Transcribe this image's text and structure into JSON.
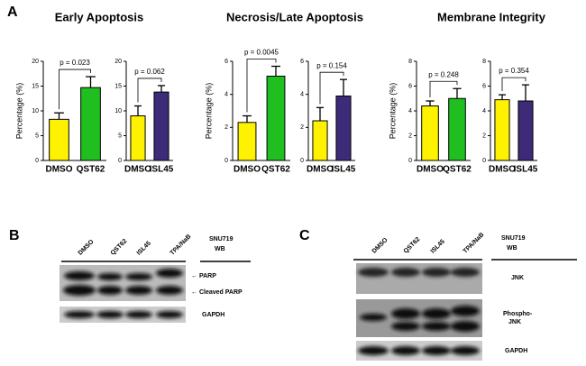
{
  "panels": {
    "a": "A",
    "b": "B",
    "c": "C"
  },
  "chart_data": [
    {
      "type": "bar",
      "title": "Early Apoptosis",
      "ylabel": "Percentage (%)",
      "categories": [
        "DMSO",
        "QST62"
      ],
      "values": [
        8.3,
        14.7
      ],
      "errors": [
        1.3,
        2.2
      ],
      "colors": [
        "#fff200",
        "#1fbf1f"
      ],
      "ylim": [
        0,
        20
      ],
      "yticks": [
        0,
        5,
        10,
        15,
        20
      ],
      "annotation": "p = 0.023"
    },
    {
      "type": "bar",
      "categories": [
        "DMSO",
        "ISL45"
      ],
      "values": [
        9.0,
        13.8
      ],
      "errors": [
        2.0,
        1.3
      ],
      "colors": [
        "#fff200",
        "#3d2b7a"
      ],
      "ylim": [
        0,
        20
      ],
      "yticks": [
        0,
        5,
        10,
        15,
        20
      ],
      "annotation": "p = 0.062"
    },
    {
      "type": "bar",
      "title": "Necrosis/Late Apoptosis",
      "ylabel": "Percentage (%)",
      "categories": [
        "DMSO",
        "QST62"
      ],
      "values": [
        2.3,
        5.1
      ],
      "errors": [
        0.4,
        0.6
      ],
      "colors": [
        "#fff200",
        "#1fbf1f"
      ],
      "ylim": [
        0,
        6
      ],
      "yticks": [
        0,
        2,
        4,
        6
      ],
      "annotation": "p = 0.0045"
    },
    {
      "type": "bar",
      "categories": [
        "DMSO",
        "ISL45"
      ],
      "values": [
        2.4,
        3.9
      ],
      "errors": [
        0.8,
        1.0
      ],
      "colors": [
        "#fff200",
        "#3d2b7a"
      ],
      "ylim": [
        0,
        6
      ],
      "yticks": [
        0,
        2,
        4,
        6
      ],
      "annotation": "p = 0.154"
    },
    {
      "type": "bar",
      "title": "Membrane Integrity",
      "ylabel": "Percentage (%)",
      "categories": [
        "DMSO",
        "QST62"
      ],
      "values": [
        4.4,
        5.0
      ],
      "errors": [
        0.4,
        0.8
      ],
      "colors": [
        "#fff200",
        "#1fbf1f"
      ],
      "ylim": [
        0,
        8
      ],
      "yticks": [
        0,
        2,
        4,
        6,
        8
      ],
      "annotation": "p = 0.248"
    },
    {
      "type": "bar",
      "categories": [
        "DMSO",
        "ISL45"
      ],
      "values": [
        4.9,
        4.8
      ],
      "errors": [
        0.4,
        1.3
      ],
      "colors": [
        "#fff200",
        "#3d2b7a"
      ],
      "ylim": [
        0,
        8
      ],
      "yticks": [
        0,
        2,
        4,
        6,
        8
      ],
      "annotation": "p = 0.354"
    }
  ],
  "blot_b": {
    "lanes": [
      "DMSO",
      "QST62",
      "ISL45",
      "TPA/NaB"
    ],
    "cell": "SNU719",
    "method": "WB",
    "bands": [
      "← PARP",
      "← Cleaved PARP",
      "GAPDH"
    ]
  },
  "blot_c": {
    "lanes": [
      "DMSO",
      "QST62",
      "ISL45",
      "TPA/NaB"
    ],
    "cell": "SNU719",
    "method": "WB",
    "bands": [
      "JNK",
      "Phospho-",
      "JNK",
      "GAPDH"
    ]
  }
}
